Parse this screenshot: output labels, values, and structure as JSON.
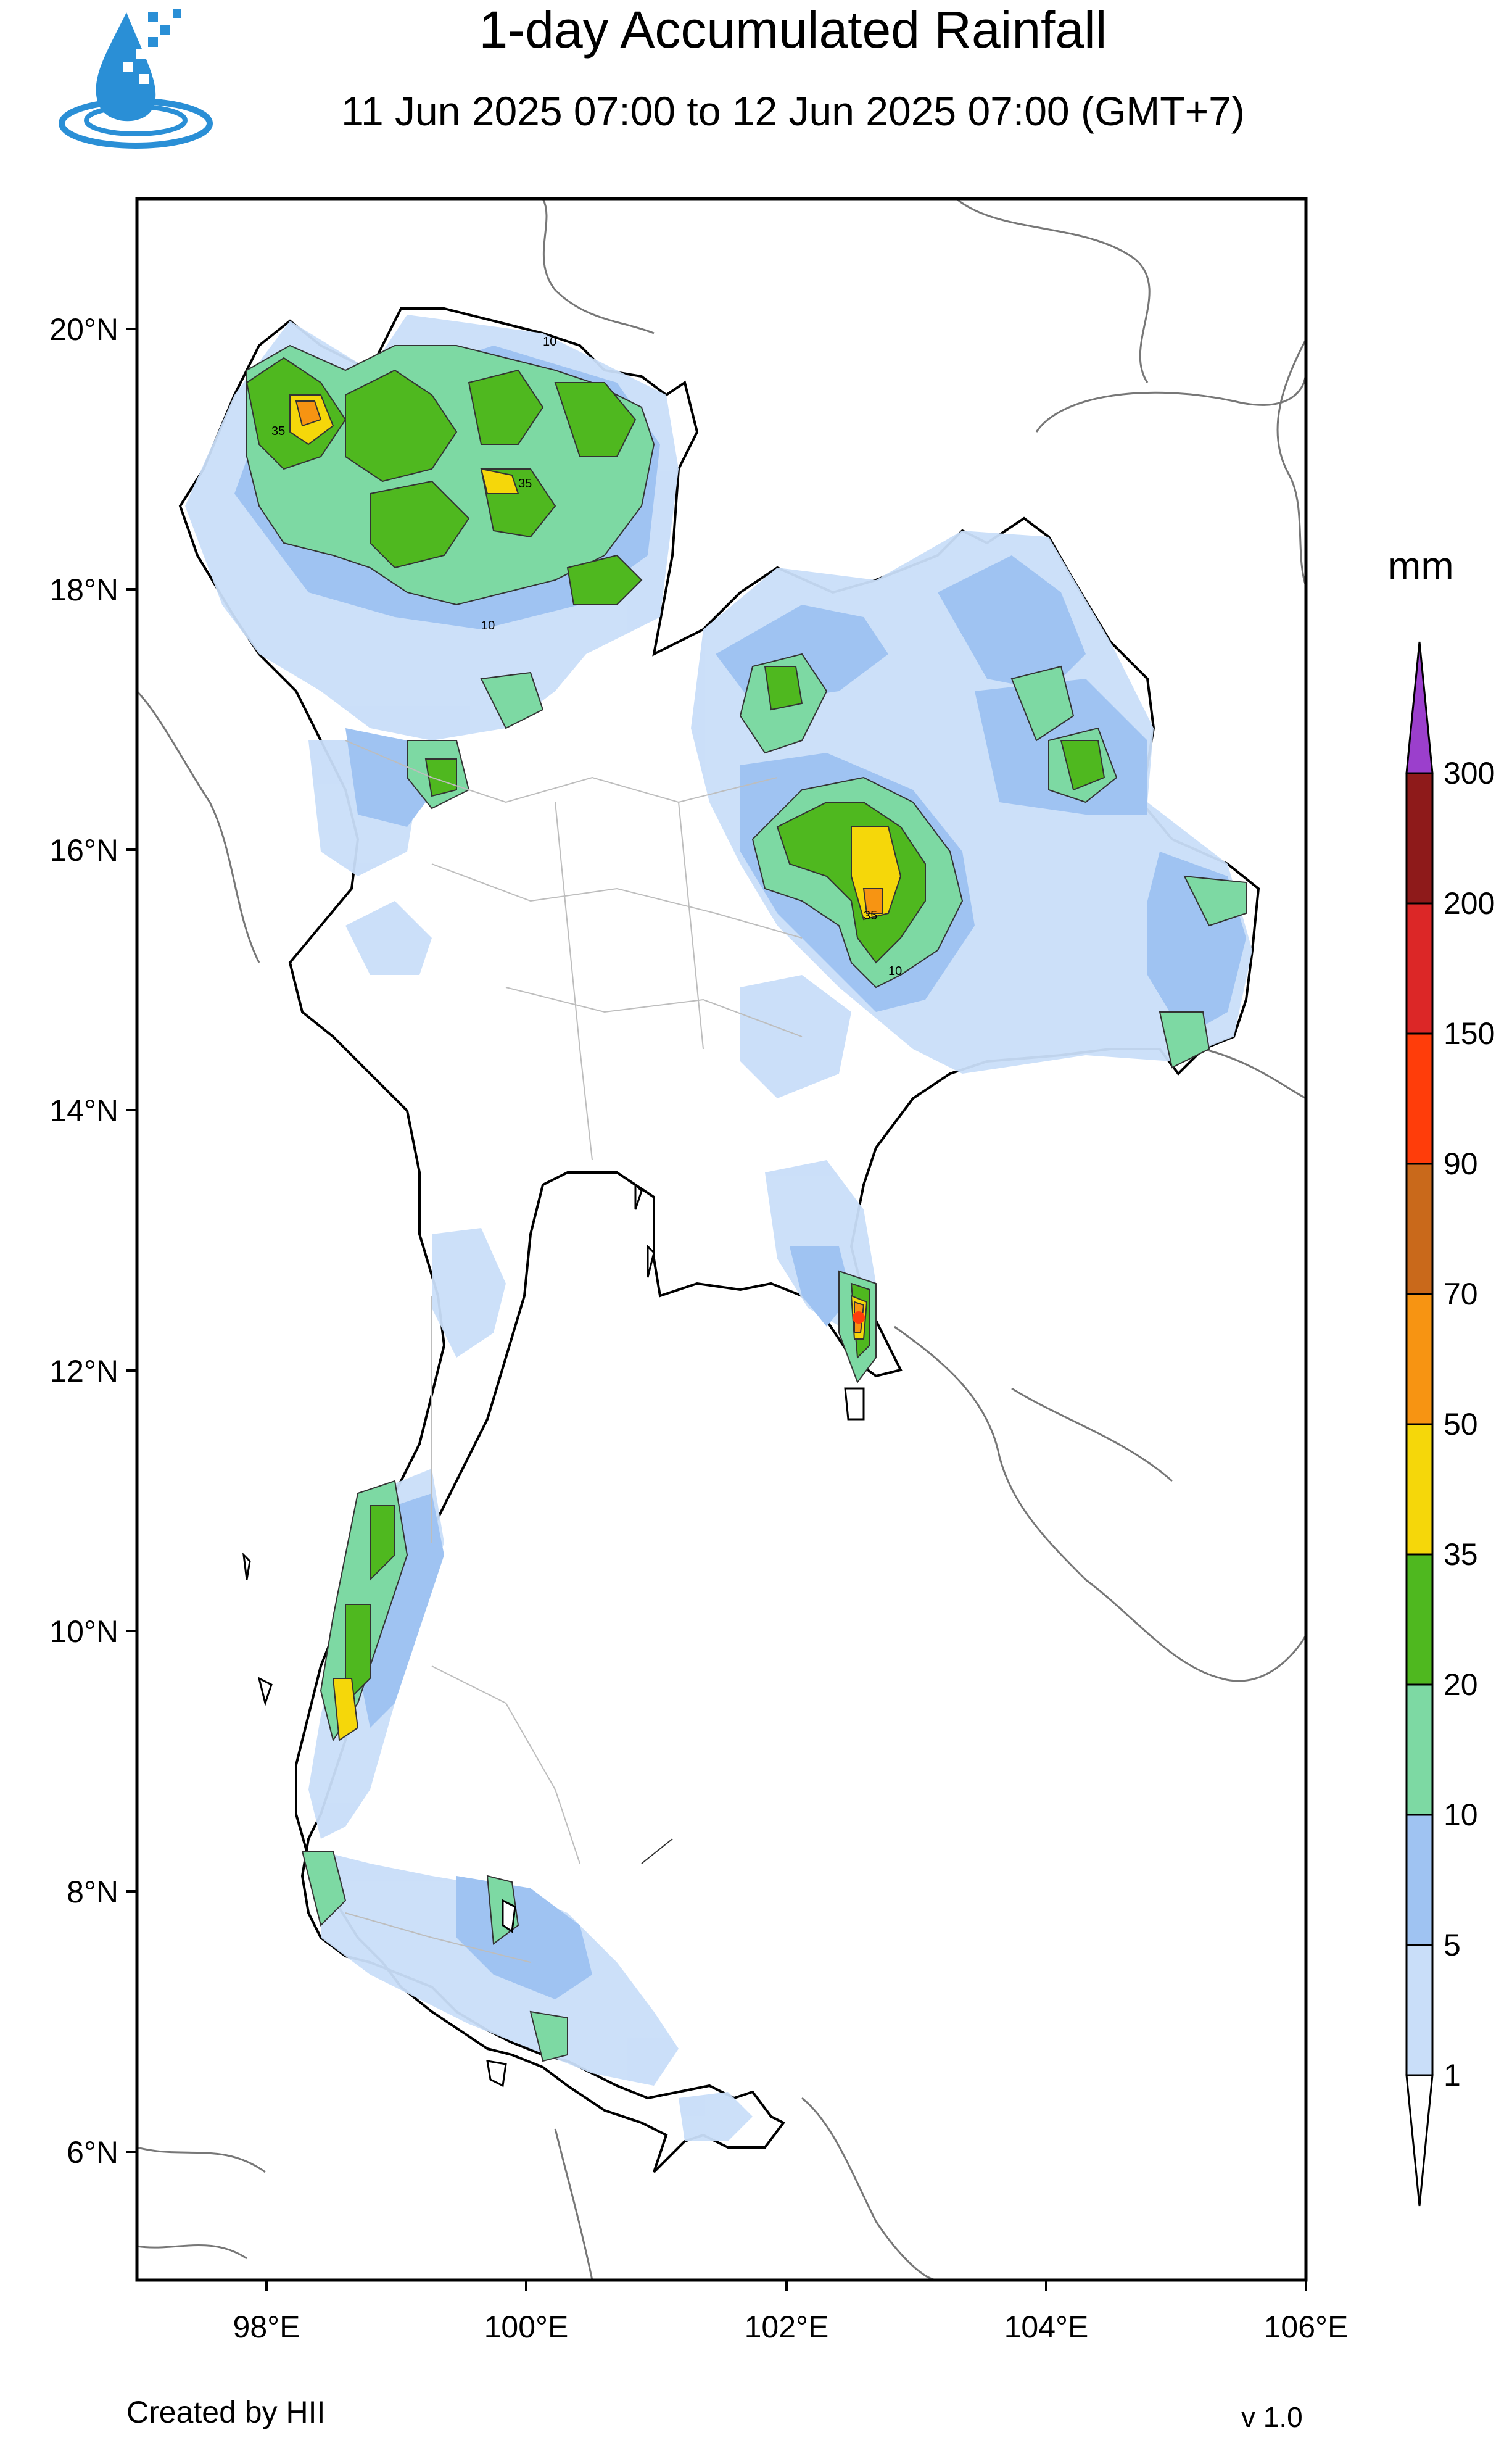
{
  "header": {
    "title": "1-day Accumulated Rainfall",
    "subtitle": "11 Jun 2025 07:00 to 12 Jun 2025 07:00 (GMT+7)"
  },
  "logo": {
    "icon": "water-drop-logo-icon",
    "color": "#2a8fd6"
  },
  "axes": {
    "lat_labels": [
      "20°N",
      "18°N",
      "16°N",
      "14°N",
      "12°N",
      "10°N",
      "8°N",
      "6°N"
    ],
    "lon_labels": [
      "98°E",
      "100°E",
      "102°E",
      "104°E",
      "106°E"
    ],
    "lat_range": [
      5.0,
      21.0
    ],
    "lon_range": [
      97.0,
      106.0
    ]
  },
  "legend": {
    "unit": "mm",
    "labels": [
      "1",
      "5",
      "10",
      "20",
      "35",
      "50",
      "70",
      "90",
      "150",
      "200",
      "300"
    ],
    "colors": [
      "#c9def9",
      "#9fc3f2",
      "#7dd9a3",
      "#4fb81f",
      "#f5d70a",
      "#f79412",
      "#c9691b",
      "#ff3d0a",
      "#dc2727",
      "#8e1a1a",
      "#9b3fcc"
    ]
  },
  "contour_labels": [
    "10",
    "35",
    "10",
    "35",
    "10",
    "35"
  ],
  "footer": {
    "credit": "Created by HII",
    "version": "v 1.0"
  }
}
